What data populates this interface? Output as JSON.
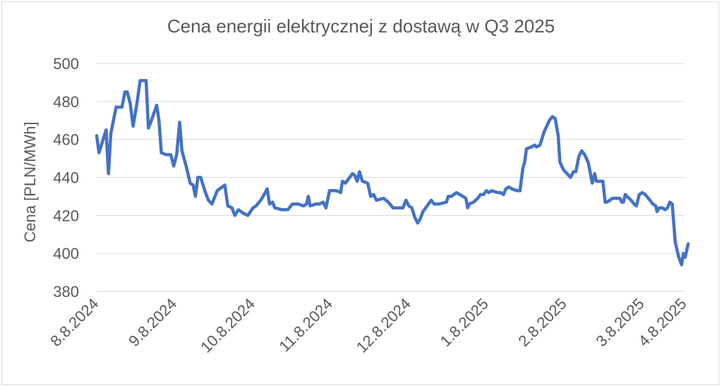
{
  "chart_data": {
    "type": "line",
    "title": "Cena energii elektrycznej z dostawą w Q3 2025",
    "xlabel": "",
    "ylabel": "Cena [PLN/MWh]",
    "ylim": [
      380,
      500
    ],
    "yticks": [
      380,
      400,
      420,
      440,
      460,
      480,
      500
    ],
    "xlim": [
      0,
      100
    ],
    "xticks": [
      {
        "label": "8.8.2024",
        "x": 0
      },
      {
        "label": "9.8.2024",
        "x": 13.3
      },
      {
        "label": "10.8.2024",
        "x": 26.6
      },
      {
        "label": "11.8.2024",
        "x": 39.8
      },
      {
        "label": "12.8.2024",
        "x": 53.1
      },
      {
        "label": "1.8.2025",
        "x": 66.3
      },
      {
        "label": "2.8.2025",
        "x": 79.6
      },
      {
        "label": "3.8.2025",
        "x": 92.8
      },
      {
        "label": "4.8.2025",
        "x": 100
      }
    ],
    "grid": "horizontal",
    "series": [
      {
        "color": "#4472c4",
        "points": [
          [
            0,
            462
          ],
          [
            0.4,
            453
          ],
          [
            1,
            459
          ],
          [
            1.6,
            465
          ],
          [
            2,
            442
          ],
          [
            2.4,
            463
          ],
          [
            3.3,
            477
          ],
          [
            4.3,
            477
          ],
          [
            4.8,
            485
          ],
          [
            5.2,
            485
          ],
          [
            5.7,
            479
          ],
          [
            6.2,
            467
          ],
          [
            6.8,
            478
          ],
          [
            7.4,
            491
          ],
          [
            8.4,
            491
          ],
          [
            8.8,
            466
          ],
          [
            9.3,
            470
          ],
          [
            10.2,
            478
          ],
          [
            10.6,
            470
          ],
          [
            11,
            453
          ],
          [
            11.8,
            452
          ],
          [
            12.6,
            452
          ],
          [
            13.1,
            446
          ],
          [
            13.6,
            452
          ],
          [
            14.1,
            469
          ],
          [
            14.5,
            454
          ],
          [
            15.3,
            445
          ],
          [
            15.9,
            437
          ],
          [
            16.4,
            436
          ],
          [
            16.8,
            430
          ],
          [
            17.2,
            440
          ],
          [
            17.7,
            440
          ],
          [
            18.5,
            432
          ],
          [
            19,
            428
          ],
          [
            19.6,
            426
          ],
          [
            20.5,
            433
          ],
          [
            21.8,
            436
          ],
          [
            22.3,
            425
          ],
          [
            23,
            424
          ],
          [
            23.5,
            420
          ],
          [
            24.1,
            423
          ],
          [
            25,
            421
          ],
          [
            25.7,
            420
          ],
          [
            26.6,
            424
          ],
          [
            27.1,
            425
          ],
          [
            27.9,
            428
          ],
          [
            28.5,
            431
          ],
          [
            29,
            434
          ],
          [
            29.4,
            426
          ],
          [
            29.9,
            427
          ],
          [
            30.3,
            424
          ],
          [
            31.5,
            423
          ],
          [
            32.5,
            423
          ],
          [
            33.3,
            426
          ],
          [
            34.3,
            426
          ],
          [
            35.2,
            425
          ],
          [
            35.7,
            426
          ],
          [
            36,
            430
          ],
          [
            36.3,
            425
          ],
          [
            37.3,
            426
          ],
          [
            37.9,
            426
          ],
          [
            38.5,
            427
          ],
          [
            39,
            424
          ],
          [
            39.6,
            433
          ],
          [
            40.8,
            433
          ],
          [
            41.5,
            432
          ],
          [
            41.8,
            438
          ],
          [
            42.3,
            437
          ],
          [
            43.5,
            442
          ],
          [
            43.9,
            441
          ],
          [
            44.3,
            438
          ],
          [
            44.7,
            443
          ],
          [
            45.2,
            438
          ],
          [
            46.1,
            437
          ],
          [
            46.6,
            430
          ],
          [
            47.1,
            431
          ],
          [
            47.6,
            428
          ],
          [
            48.8,
            429
          ],
          [
            49.6,
            427
          ],
          [
            50.4,
            424
          ],
          [
            51.3,
            424
          ],
          [
            52.1,
            424
          ],
          [
            52.6,
            428
          ],
          [
            53.1,
            425
          ],
          [
            53.6,
            424
          ],
          [
            54.1,
            419
          ],
          [
            54.6,
            416
          ],
          [
            55,
            418
          ],
          [
            55.5,
            422
          ],
          [
            56.2,
            425
          ],
          [
            56.9,
            428
          ],
          [
            57.4,
            426
          ],
          [
            58.2,
            426
          ],
          [
            59.5,
            427
          ],
          [
            59.8,
            430
          ],
          [
            60.3,
            430
          ],
          [
            61.2,
            432
          ],
          [
            62.3,
            430
          ],
          [
            62.8,
            429
          ],
          [
            63.1,
            424
          ],
          [
            63.4,
            426
          ],
          [
            64.1,
            427
          ],
          [
            64.8,
            429
          ],
          [
            65.3,
            431
          ],
          [
            65.8,
            431
          ],
          [
            66.3,
            433
          ],
          [
            66.7,
            432
          ],
          [
            67.2,
            433
          ],
          [
            68.2,
            432
          ],
          [
            68.7,
            432
          ],
          [
            69.2,
            431
          ],
          [
            69.6,
            434
          ],
          [
            70.1,
            435
          ],
          [
            70.6,
            434
          ],
          [
            71.5,
            433
          ],
          [
            72,
            433
          ],
          [
            72.5,
            445
          ],
          [
            72.8,
            448
          ],
          [
            73.1,
            455
          ],
          [
            73.9,
            456
          ],
          [
            74.5,
            457
          ],
          [
            74.8,
            456
          ],
          [
            75.4,
            457
          ],
          [
            76.1,
            464
          ],
          [
            77,
            470
          ],
          [
            77.5,
            472
          ],
          [
            78,
            471
          ],
          [
            78.5,
            462
          ],
          [
            78.8,
            448
          ],
          [
            79.4,
            444
          ],
          [
            80.3,
            441
          ],
          [
            80.6,
            440
          ],
          [
            81.1,
            443
          ],
          [
            81.5,
            443
          ],
          [
            82,
            451
          ],
          [
            82.5,
            454
          ],
          [
            83,
            452
          ],
          [
            83.6,
            448
          ],
          [
            84.1,
            440
          ],
          [
            84.3,
            437
          ],
          [
            84.7,
            442
          ],
          [
            85,
            438
          ],
          [
            85.5,
            438
          ],
          [
            86.1,
            438
          ],
          [
            86.5,
            427
          ],
          [
            86.8,
            427
          ],
          [
            87.3,
            428
          ],
          [
            87.7,
            429
          ],
          [
            89,
            429
          ],
          [
            89.3,
            427
          ],
          [
            89.6,
            427
          ],
          [
            89.9,
            431
          ],
          [
            90.2,
            430
          ],
          [
            90.9,
            428
          ],
          [
            91.4,
            426
          ],
          [
            91.8,
            425
          ],
          [
            92.3,
            431
          ],
          [
            92.8,
            432
          ],
          [
            93.3,
            431
          ],
          [
            94.1,
            428
          ],
          [
            94.6,
            426
          ],
          [
            95.1,
            425
          ],
          [
            95.3,
            422
          ],
          [
            95.7,
            424
          ],
          [
            96.2,
            424
          ],
          [
            96.7,
            423
          ],
          [
            97.1,
            424
          ],
          [
            97.5,
            427
          ],
          [
            97.9,
            426
          ],
          [
            98.4,
            406
          ],
          [
            99,
            398
          ],
          [
            99.5,
            394
          ],
          [
            99.8,
            400
          ],
          [
            100.1,
            398
          ],
          [
            100.6,
            405
          ]
        ]
      }
    ]
  }
}
